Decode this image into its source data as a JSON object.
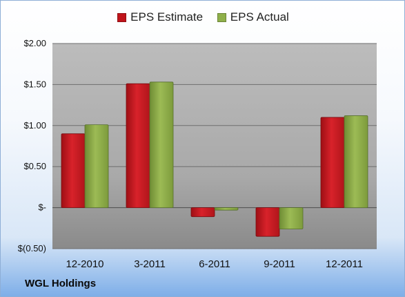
{
  "chart_data": {
    "type": "bar",
    "categories": [
      "12-2010",
      "3-2011",
      "6-2011",
      "9-2011",
      "12-2011"
    ],
    "series": [
      {
        "name": "EPS Estimate",
        "values": [
          0.9,
          1.51,
          -0.11,
          -0.35,
          1.1
        ],
        "color": "#c0141b"
      },
      {
        "name": "EPS Actual",
        "values": [
          1.01,
          1.53,
          -0.03,
          -0.26,
          1.12
        ],
        "color": "#7a9a3c"
      }
    ],
    "ylim": [
      -0.5,
      2.0
    ],
    "yticks": [
      {
        "value": 2.0,
        "label": "$2.00"
      },
      {
        "value": 1.5,
        "label": "$1.50"
      },
      {
        "value": 1.0,
        "label": "$1.00"
      },
      {
        "value": 0.5,
        "label": "$0.50"
      },
      {
        "value": 0.0,
        "label": "$-"
      },
      {
        "value": -0.5,
        "label": "$(0.50)"
      }
    ],
    "grid": true,
    "legend_position": "top"
  },
  "company": "WGL Holdings"
}
